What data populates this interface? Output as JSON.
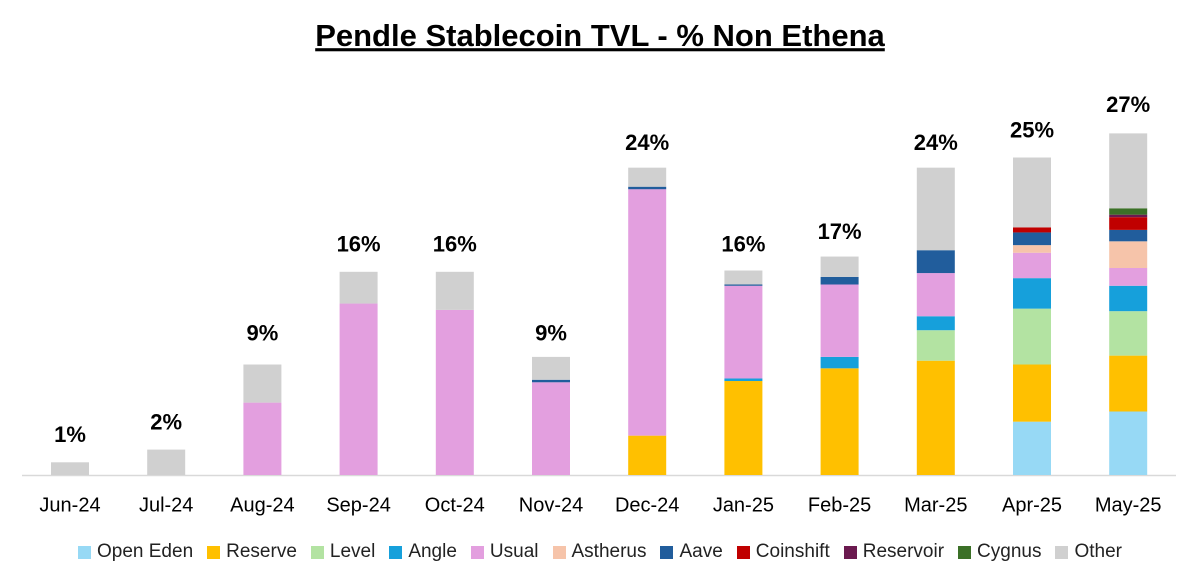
{
  "chart_data": {
    "type": "stacked-bar",
    "title": "Pendle Stablecoin TVL - % Non Ethena",
    "categories": [
      "Jun-24",
      "Jul-24",
      "Aug-24",
      "Sep-24",
      "Oct-24",
      "Nov-24",
      "Dec-24",
      "Jan-25",
      "Feb-25",
      "Mar-25",
      "Apr-25",
      "May-25"
    ],
    "ylim": [
      0,
      28
    ],
    "series": [
      {
        "name": "Open Eden",
        "color": "#97d9f5",
        "values": [
          0,
          0,
          0,
          0,
          0,
          0,
          0,
          0,
          0,
          0,
          4.2,
          5.0
        ]
      },
      {
        "name": "Reserve",
        "color": "#ffc000",
        "values": [
          0,
          0,
          0,
          0,
          0,
          0,
          3.1,
          7.4,
          8.4,
          9.0,
          4.5,
          4.4
        ]
      },
      {
        "name": "Level",
        "color": "#b3e3a2",
        "values": [
          0,
          0,
          0,
          0,
          0,
          0,
          0,
          0,
          0,
          2.4,
          4.4,
          3.5
        ]
      },
      {
        "name": "Angle",
        "color": "#16a0db",
        "values": [
          0,
          0,
          0,
          0,
          0,
          0,
          0,
          0.2,
          0.9,
          1.1,
          2.4,
          2.0
        ]
      },
      {
        "name": "Usual",
        "color": "#e39fdf",
        "values": [
          0,
          0,
          5.7,
          13.5,
          13,
          7.3,
          19.4,
          7.3,
          5.7,
          3.4,
          2.0,
          1.4
        ]
      },
      {
        "name": "Astherus",
        "color": "#f6c4aa",
        "values": [
          0,
          0,
          0,
          0,
          0,
          0,
          0,
          0,
          0,
          0,
          0.6,
          2.1
        ]
      },
      {
        "name": "Aave",
        "color": "#215d9c",
        "values": [
          0,
          0,
          0,
          0,
          0,
          0.2,
          0.2,
          0.1,
          0.6,
          1.8,
          1.0,
          0.9
        ]
      },
      {
        "name": "Coinshift",
        "color": "#c00000",
        "values": [
          0,
          0,
          0,
          0,
          0,
          0,
          0,
          0,
          0,
          0,
          0.4,
          1.0
        ]
      },
      {
        "name": "Reservoir",
        "color": "#6b1a4f",
        "values": [
          0,
          0,
          0,
          0,
          0,
          0,
          0,
          0,
          0,
          0,
          0,
          0.2
        ]
      },
      {
        "name": "Cygnus",
        "color": "#3b7027",
        "values": [
          0,
          0,
          0,
          0,
          0,
          0,
          0,
          0,
          0,
          0,
          0,
          0.5
        ]
      },
      {
        "name": "Other",
        "color": "#d0d0d0",
        "values": [
          1,
          2,
          3,
          2.5,
          3,
          1.8,
          1.5,
          1.1,
          1.6,
          6.5,
          5.5,
          5.9
        ]
      }
    ],
    "totals": {
      "values": [
        1,
        2,
        9,
        16,
        16,
        9,
        24,
        16,
        17,
        24,
        25,
        27
      ],
      "value_labels": [
        "1%",
        "2%",
        "9%",
        "16%",
        "16%",
        "9%",
        "24%",
        "16%",
        "17%",
        "24%",
        "25%",
        "27%"
      ]
    }
  }
}
